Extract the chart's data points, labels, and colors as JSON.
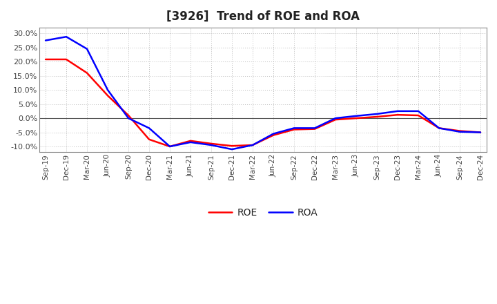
{
  "title": "[3926]  Trend of ROE and ROA",
  "x_labels": [
    "Sep-19",
    "Dec-19",
    "Mar-20",
    "Jun-20",
    "Sep-20",
    "Dec-20",
    "Mar-21",
    "Jun-21",
    "Sep-21",
    "Dec-21",
    "Mar-22",
    "Jun-22",
    "Sep-22",
    "Dec-22",
    "Mar-23",
    "Jun-23",
    "Sep-23",
    "Dec-23",
    "Mar-24",
    "Jun-24",
    "Sep-24",
    "Dec-24"
  ],
  "roe": [
    20.8,
    20.8,
    16.0,
    8.0,
    1.0,
    -7.5,
    -10.0,
    -8.0,
    -9.0,
    -9.8,
    -9.5,
    -6.0,
    -4.0,
    -3.8,
    -0.5,
    0.0,
    0.5,
    1.2,
    1.0,
    -3.5,
    -4.5,
    -5.0
  ],
  "roa": [
    27.5,
    28.8,
    24.5,
    10.0,
    0.0,
    -3.5,
    -10.0,
    -8.5,
    -9.5,
    -11.0,
    -9.5,
    -5.5,
    -3.5,
    -3.5,
    0.0,
    0.8,
    1.5,
    2.5,
    2.5,
    -3.5,
    -4.8,
    -5.0
  ],
  "ylim": [
    -12.0,
    32.0
  ],
  "yticks": [
    -10.0,
    -5.0,
    0.0,
    5.0,
    10.0,
    15.0,
    20.0,
    25.0,
    30.0
  ],
  "roe_color": "#ff0000",
  "roa_color": "#0000ff",
  "line_width": 1.8,
  "background_color": "#ffffff",
  "grid_color": "#bbbbbb",
  "zero_line_color": "#555555",
  "spine_color": "#888888"
}
